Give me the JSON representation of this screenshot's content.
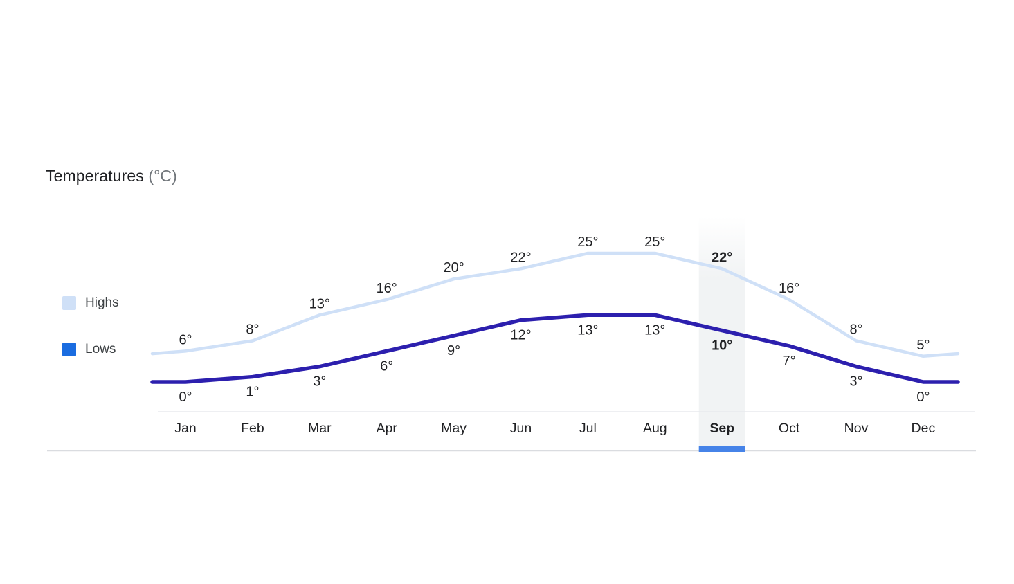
{
  "page": {
    "background": "#ffffff"
  },
  "title": {
    "text": "Temperatures",
    "unit": "(°C)"
  },
  "legend": {
    "items": [
      {
        "id": "highs",
        "label": "Highs",
        "swatch_color": "#cfe0f7"
      },
      {
        "id": "lows",
        "label": "Lows",
        "swatch_color": "#1a6ce0"
      }
    ]
  },
  "chart_data": {
    "type": "line",
    "title": "Temperatures (°C)",
    "unit": "°C",
    "categories": [
      "Jan",
      "Feb",
      "Mar",
      "Apr",
      "May",
      "Jun",
      "Jul",
      "Aug",
      "Sep",
      "Oct",
      "Nov",
      "Dec"
    ],
    "series": [
      {
        "name": "Highs",
        "values": [
          6,
          8,
          13,
          16,
          20,
          22,
          25,
          25,
          22,
          16,
          8,
          5
        ],
        "color": "#cfe0f7"
      },
      {
        "name": "Lows",
        "values": [
          0,
          1,
          3,
          6,
          9,
          12,
          13,
          13,
          10,
          7,
          3,
          0
        ],
        "color": "#2c1fae"
      }
    ],
    "value_suffix": "°",
    "selected_index": 8,
    "selected_category": "Sep",
    "legend_position": "left",
    "grid": false,
    "ylim": [
      -2,
      27
    ],
    "label_color": "#202124",
    "month_label_color": "#202124",
    "highlight_band_color": "#f1f3f4",
    "selected_underline_color": "#4683e8",
    "axis_line_color": "#e8eaed",
    "separator_line_color": "#dadce0"
  }
}
